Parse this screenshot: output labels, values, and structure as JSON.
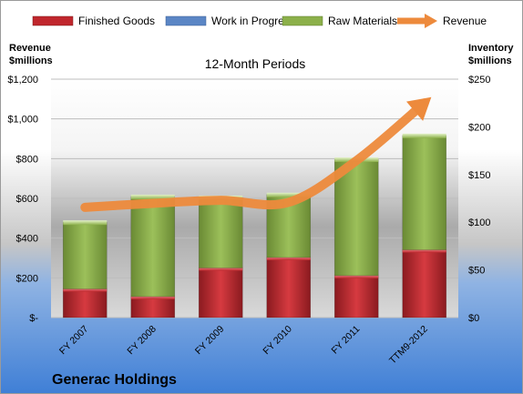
{
  "company": "Generac Holdings",
  "chart_data": {
    "type": "bar",
    "subtitle": "12-Month Periods",
    "left_axis_label": [
      "Revenue",
      "$millions"
    ],
    "right_axis_label": [
      "Inventory",
      "$millions"
    ],
    "categories": [
      "FY 2007",
      "FY 2008",
      "FY 2009",
      "FY 2010",
      "FY 2011",
      "TTM9-2012"
    ],
    "left_axis": {
      "min": 0,
      "max": 1200,
      "step": 200,
      "tick_labels": [
        "$-",
        "$200",
        "$400",
        "$600",
        "$800",
        "$1,000",
        "$1,200"
      ]
    },
    "right_axis": {
      "min": 0,
      "max": 250,
      "step": 50,
      "tick_labels": [
        "$0",
        "$50",
        "$100",
        "$150",
        "$200",
        "$250"
      ]
    },
    "legend_position": "top",
    "bar_series_axis": "right",
    "line_series_axis": "left",
    "series": [
      {
        "name": "Finished Goods",
        "kind": "bar",
        "color": "#c0272d",
        "values": [
          30,
          22,
          52,
          63,
          44,
          71
        ]
      },
      {
        "name": "Work in Progress",
        "kind": "bar",
        "color": "#5b86c5",
        "values": [
          0,
          0,
          0,
          0,
          0,
          0
        ]
      },
      {
        "name": "Raw Materials",
        "kind": "bar",
        "color": "#8cb04a",
        "values": [
          70,
          105,
          74,
          66,
          122,
          120
        ]
      },
      {
        "name": "Revenue",
        "kind": "line",
        "color": "#ed8a3c",
        "values": [
          555,
          575,
          590,
          580,
          790,
          1080
        ]
      }
    ]
  }
}
